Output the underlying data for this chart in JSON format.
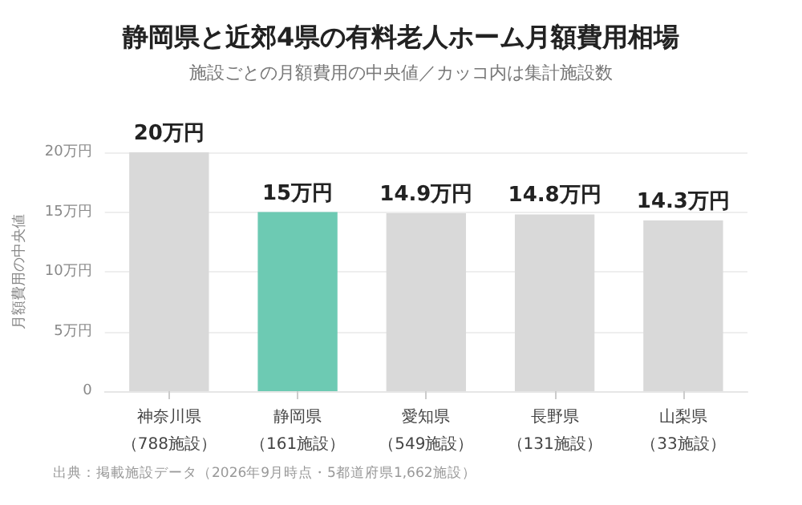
{
  "chart_data": {
    "type": "bar",
    "title": "静岡県と近郊4県の有料老人ホーム月額費用相場",
    "subtitle": "施設ごとの月額費用の中央値／カッコ内は集計施設数",
    "ylabel": "月額費用の中央値",
    "categories": [
      "神奈川県（788施設）",
      "静岡県（161施設）",
      "愛知県（549施設）",
      "長野県（131施設）",
      "山梨県（33施設）"
    ],
    "values": [
      20,
      15,
      14.9,
      14.8,
      14.3
    ],
    "value_labels": [
      "20万円",
      "15万円",
      "14.9万円",
      "14.8万円",
      "14.3万円"
    ],
    "colors": [
      "#d9d9d9",
      "#6dcab3",
      "#d9d9d9",
      "#d9d9d9",
      "#d9d9d9"
    ],
    "ylim": [
      0,
      20
    ],
    "yticks": [
      0,
      {
        "value": 5,
        "label": "5万円"
      },
      {
        "value": 10,
        "label": "10万円"
      },
      {
        "value": 15,
        "label": "15万円"
      },
      {
        "value": 20,
        "label": "20万円"
      }
    ],
    "grid": "y",
    "annotations": [
      "出典：掲載施設データ（2026年9月時点・5都道府県1,662施設）"
    ]
  }
}
